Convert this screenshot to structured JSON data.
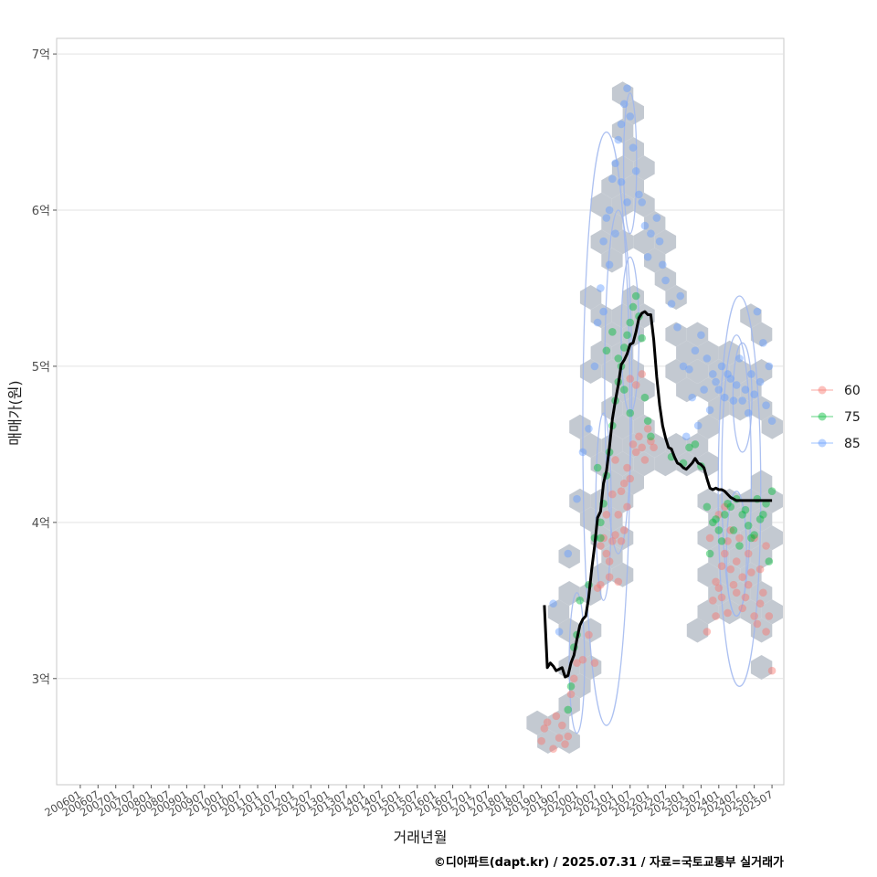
{
  "chart_data": {
    "type": "scatter",
    "title": "",
    "xlabel": "거래년월",
    "ylabel": "매매가(원)",
    "caption": "©디아파트(dapt.kr) / 2025.07.31 / 자료=국토교통부 실거래가",
    "x_tick_labels": [
      "200601",
      "200607",
      "200701",
      "200707",
      "200801",
      "200807",
      "200901",
      "200907",
      "201001",
      "201007",
      "201101",
      "201107",
      "201201",
      "201207",
      "201301",
      "201307",
      "201401",
      "201407",
      "201501",
      "201507",
      "201601",
      "201607",
      "201701",
      "201707",
      "201801",
      "201807",
      "201901",
      "201907",
      "202001",
      "202007",
      "202101",
      "202107",
      "202201",
      "202207",
      "202301",
      "202307",
      "202401",
      "202407",
      "202501",
      "202507"
    ],
    "y_tick_labels": [
      "3억",
      "4억",
      "5억",
      "6억",
      "7억"
    ],
    "y_tick_values": [
      3.0,
      4.0,
      5.0,
      6.0,
      7.0
    ],
    "ylim": [
      2.32,
      7.1
    ],
    "x_range_months": [
      -8,
      238
    ],
    "legend": {
      "position": "right",
      "entries": [
        {
          "label": "60",
          "color": "#F8766D"
        },
        {
          "label": "75",
          "color": "#00BA38"
        },
        {
          "label": "85",
          "color": "#619CFF"
        }
      ]
    },
    "trend_line": {
      "name": "moving average",
      "x": [
        157,
        158,
        159,
        160,
        161,
        162,
        163,
        164,
        165,
        166,
        167,
        168,
        169,
        170,
        171,
        172,
        173,
        174,
        175,
        176,
        177,
        178,
        179,
        180,
        181,
        182,
        183,
        184,
        185,
        186,
        187,
        188,
        189,
        190,
        191,
        192,
        193,
        194,
        195,
        196,
        197,
        198,
        199,
        200,
        201,
        202,
        203,
        204,
        205,
        206,
        207,
        208,
        209,
        210,
        211,
        212,
        213,
        214,
        215,
        216,
        217,
        218,
        219,
        220,
        221,
        222,
        223,
        224,
        225,
        226,
        227,
        228,
        229,
        230,
        231,
        232,
        233,
        234
      ],
      "y": [
        3.47,
        3.07,
        3.1,
        3.08,
        3.05,
        3.06,
        3.07,
        3.01,
        3.02,
        3.1,
        3.15,
        3.25,
        3.34,
        3.38,
        3.4,
        3.52,
        3.7,
        3.85,
        4.03,
        4.07,
        4.25,
        4.33,
        4.48,
        4.66,
        4.78,
        4.88,
        5.01,
        5.04,
        5.08,
        5.14,
        5.15,
        5.22,
        5.31,
        5.34,
        5.35,
        5.33,
        5.33,
        5.17,
        4.93,
        4.75,
        4.62,
        4.54,
        4.48,
        4.47,
        4.42,
        4.38,
        4.37,
        4.35,
        4.34,
        4.36,
        4.38,
        4.41,
        4.38,
        4.37,
        4.35,
        4.28,
        4.22,
        4.21,
        4.22,
        4.21,
        4.21,
        4.2,
        4.18,
        4.16,
        4.15,
        4.14,
        4.14,
        4.14,
        4.14,
        4.14,
        4.14,
        4.14,
        4.14,
        4.14,
        4.14,
        4.14,
        4.14,
        4.14
      ]
    },
    "series": [
      {
        "name": "60",
        "points": [
          [
            156,
            2.6
          ],
          [
            157,
            2.68
          ],
          [
            158,
            2.72
          ],
          [
            160,
            2.55
          ],
          [
            162,
            2.62
          ],
          [
            163,
            2.7
          ],
          [
            164,
            2.58
          ],
          [
            165,
            2.63
          ],
          [
            161,
            2.76
          ],
          [
            166,
            2.9
          ],
          [
            167,
            3.0
          ],
          [
            168,
            3.1
          ],
          [
            170,
            3.12
          ],
          [
            172,
            3.28
          ],
          [
            175,
            3.58
          ],
          [
            176,
            3.85
          ],
          [
            177,
            3.9
          ],
          [
            178,
            3.8
          ],
          [
            179,
            3.75
          ],
          [
            180,
            3.88
          ],
          [
            181,
            3.92
          ],
          [
            182,
            4.05
          ],
          [
            183,
            4.2
          ],
          [
            184,
            4.25
          ],
          [
            185,
            4.35
          ],
          [
            186,
            4.28
          ],
          [
            187,
            4.5
          ],
          [
            188,
            4.45
          ],
          [
            189,
            4.55
          ],
          [
            190,
            4.48
          ],
          [
            191,
            4.4
          ],
          [
            192,
            4.6
          ],
          [
            193,
            4.52
          ],
          [
            194,
            4.48
          ],
          [
            186,
            4.92
          ],
          [
            188,
            4.88
          ],
          [
            190,
            4.95
          ],
          [
            185,
            4.1
          ],
          [
            182,
            3.62
          ],
          [
            184,
            3.95
          ],
          [
            178,
            4.05
          ],
          [
            180,
            4.18
          ],
          [
            176,
            3.6
          ],
          [
            174,
            3.1
          ],
          [
            183,
            3.88
          ],
          [
            179,
            3.65
          ],
          [
            181,
            4.4
          ],
          [
            214,
            3.5
          ],
          [
            215,
            3.4
          ],
          [
            216,
            3.58
          ],
          [
            217,
            3.72
          ],
          [
            218,
            3.8
          ],
          [
            219,
            3.88
          ],
          [
            220,
            3.95
          ],
          [
            221,
            3.6
          ],
          [
            222,
            3.75
          ],
          [
            223,
            3.9
          ],
          [
            224,
            3.45
          ],
          [
            225,
            3.52
          ],
          [
            226,
            3.6
          ],
          [
            227,
            3.68
          ],
          [
            228,
            3.4
          ],
          [
            229,
            3.35
          ],
          [
            230,
            3.48
          ],
          [
            231,
            3.55
          ],
          [
            232,
            3.3
          ],
          [
            233,
            3.4
          ],
          [
            234,
            3.05
          ],
          [
            212,
            3.3
          ],
          [
            213,
            3.9
          ],
          [
            216,
            4.05
          ],
          [
            218,
            4.1
          ],
          [
            220,
            3.7
          ],
          [
            222,
            3.55
          ],
          [
            224,
            3.65
          ],
          [
            226,
            3.8
          ],
          [
            228,
            3.9
          ],
          [
            230,
            3.7
          ],
          [
            232,
            3.85
          ],
          [
            215,
            3.62
          ],
          [
            217,
            3.52
          ],
          [
            219,
            3.42
          ]
        ]
      },
      {
        "name": "75",
        "points": [
          [
            165,
            2.8
          ],
          [
            166,
            2.95
          ],
          [
            167,
            3.2
          ],
          [
            168,
            3.28
          ],
          [
            169,
            3.5
          ],
          [
            172,
            3.6
          ],
          [
            174,
            3.9
          ],
          [
            176,
            4.0
          ],
          [
            177,
            4.12
          ],
          [
            178,
            4.3
          ],
          [
            179,
            4.45
          ],
          [
            180,
            4.62
          ],
          [
            181,
            4.78
          ],
          [
            182,
            4.9
          ],
          [
            183,
            5.0
          ],
          [
            184,
            5.12
          ],
          [
            185,
            5.2
          ],
          [
            186,
            5.28
          ],
          [
            187,
            5.38
          ],
          [
            188,
            5.45
          ],
          [
            189,
            5.32
          ],
          [
            190,
            5.18
          ],
          [
            191,
            4.8
          ],
          [
            192,
            4.65
          ],
          [
            193,
            4.55
          ],
          [
            178,
            5.1
          ],
          [
            180,
            5.22
          ],
          [
            182,
            5.05
          ],
          [
            184,
            4.85
          ],
          [
            186,
            4.7
          ],
          [
            176,
            3.9
          ],
          [
            175,
            4.35
          ],
          [
            200,
            4.42
          ],
          [
            204,
            4.38
          ],
          [
            206,
            4.48
          ],
          [
            208,
            4.5
          ],
          [
            210,
            4.36
          ],
          [
            212,
            4.1
          ],
          [
            214,
            4.0
          ],
          [
            216,
            3.95
          ],
          [
            218,
            4.05
          ],
          [
            220,
            4.1
          ],
          [
            222,
            4.15
          ],
          [
            224,
            4.05
          ],
          [
            226,
            3.98
          ],
          [
            228,
            3.92
          ],
          [
            230,
            4.02
          ],
          [
            232,
            4.12
          ],
          [
            234,
            4.2
          ],
          [
            213,
            3.8
          ],
          [
            215,
            4.02
          ],
          [
            217,
            3.88
          ],
          [
            219,
            4.12
          ],
          [
            221,
            3.95
          ],
          [
            223,
            3.85
          ],
          [
            225,
            4.08
          ],
          [
            227,
            3.9
          ],
          [
            229,
            4.15
          ],
          [
            231,
            4.05
          ],
          [
            233,
            3.75
          ]
        ]
      },
      {
        "name": "85",
        "points": [
          [
            160,
            3.48
          ],
          [
            162,
            3.3
          ],
          [
            165,
            3.8
          ],
          [
            168,
            4.15
          ],
          [
            170,
            4.45
          ],
          [
            172,
            4.6
          ],
          [
            174,
            5.0
          ],
          [
            175,
            5.28
          ],
          [
            176,
            5.5
          ],
          [
            177,
            5.8
          ],
          [
            178,
            5.95
          ],
          [
            179,
            6.0
          ],
          [
            180,
            6.2
          ],
          [
            181,
            6.3
          ],
          [
            182,
            6.45
          ],
          [
            183,
            6.55
          ],
          [
            184,
            6.68
          ],
          [
            185,
            6.78
          ],
          [
            186,
            6.6
          ],
          [
            187,
            6.4
          ],
          [
            188,
            6.25
          ],
          [
            189,
            6.1
          ],
          [
            190,
            6.05
          ],
          [
            191,
            5.9
          ],
          [
            192,
            5.7
          ],
          [
            185,
            6.05
          ],
          [
            183,
            6.18
          ],
          [
            181,
            5.85
          ],
          [
            179,
            5.65
          ],
          [
            177,
            5.35
          ],
          [
            193,
            5.85
          ],
          [
            195,
            5.95
          ],
          [
            196,
            5.8
          ],
          [
            197,
            5.65
          ],
          [
            198,
            5.55
          ],
          [
            200,
            5.4
          ],
          [
            202,
            5.25
          ],
          [
            204,
            5.0
          ],
          [
            206,
            4.98
          ],
          [
            208,
            5.1
          ],
          [
            210,
            5.2
          ],
          [
            212,
            5.05
          ],
          [
            214,
            4.95
          ],
          [
            216,
            4.85
          ],
          [
            218,
            4.8
          ],
          [
            220,
            4.92
          ],
          [
            222,
            4.88
          ],
          [
            224,
            4.78
          ],
          [
            226,
            4.7
          ],
          [
            228,
            4.82
          ],
          [
            230,
            4.9
          ],
          [
            232,
            4.75
          ],
          [
            234,
            4.65
          ],
          [
            211,
            4.85
          ],
          [
            213,
            4.72
          ],
          [
            215,
            4.9
          ],
          [
            217,
            5.0
          ],
          [
            219,
            4.95
          ],
          [
            221,
            4.78
          ],
          [
            223,
            5.05
          ],
          [
            225,
            4.85
          ],
          [
            227,
            4.95
          ],
          [
            229,
            5.35
          ],
          [
            231,
            5.15
          ],
          [
            233,
            5.0
          ],
          [
            203,
            5.45
          ],
          [
            205,
            4.55
          ],
          [
            207,
            4.8
          ],
          [
            209,
            4.62
          ]
        ]
      }
    ]
  }
}
